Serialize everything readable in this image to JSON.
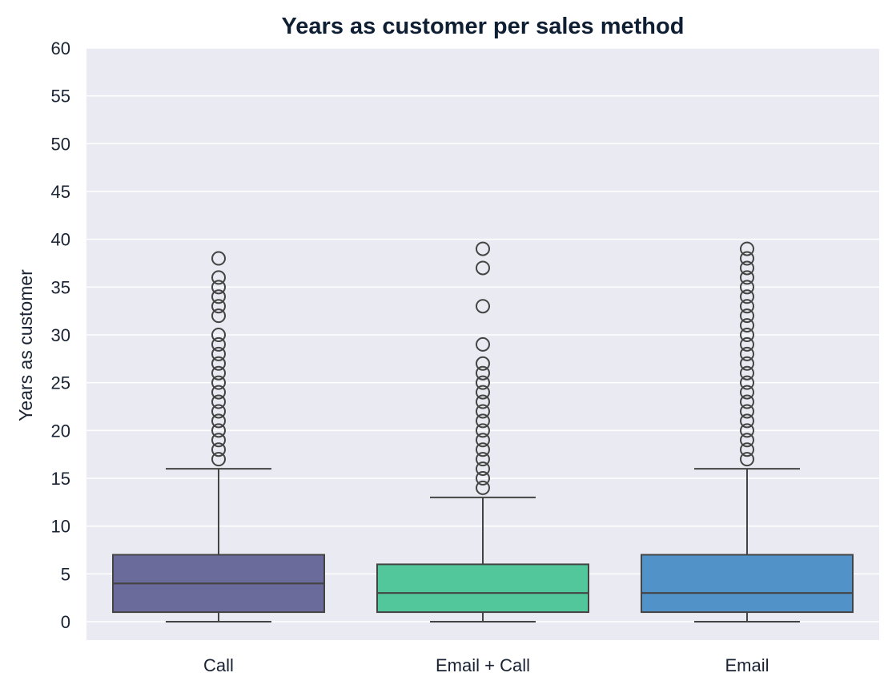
{
  "chart_data": {
    "type": "box",
    "title": "Years as customer per sales method",
    "xlabel": "",
    "ylabel": "Years as customer",
    "ylim": [
      -2,
      60
    ],
    "yticks": [
      0,
      5,
      10,
      15,
      20,
      25,
      30,
      35,
      40,
      45,
      50,
      55,
      60
    ],
    "grid": true,
    "background": "#eaeaf2",
    "categories": [
      "Call",
      "Email + Call",
      "Email"
    ],
    "boxes": [
      {
        "category": "Call",
        "color": "#6b6b9b",
        "whisker_low": 0,
        "q1": 1,
        "median": 4,
        "q3": 7,
        "whisker_high": 16,
        "outliers": [
          17,
          18,
          19,
          20,
          21,
          22,
          23,
          24,
          25,
          26,
          27,
          28,
          29,
          30,
          32,
          33,
          34,
          35,
          36,
          38
        ]
      },
      {
        "category": "Email + Call",
        "color": "#52c79b",
        "whisker_low": 0,
        "q1": 1,
        "median": 3,
        "q3": 6,
        "whisker_high": 13,
        "outliers": [
          14,
          15,
          16,
          17,
          18,
          19,
          20,
          21,
          22,
          23,
          24,
          25,
          26,
          27,
          29,
          33,
          37,
          39
        ]
      },
      {
        "category": "Email",
        "color": "#5193c9",
        "whisker_low": 0,
        "q1": 1,
        "median": 3,
        "q3": 7,
        "whisker_high": 16,
        "outliers": [
          17,
          18,
          19,
          20,
          21,
          22,
          23,
          24,
          25,
          26,
          27,
          28,
          29,
          30,
          31,
          32,
          33,
          34,
          35,
          36,
          37,
          38,
          39
        ]
      }
    ]
  }
}
